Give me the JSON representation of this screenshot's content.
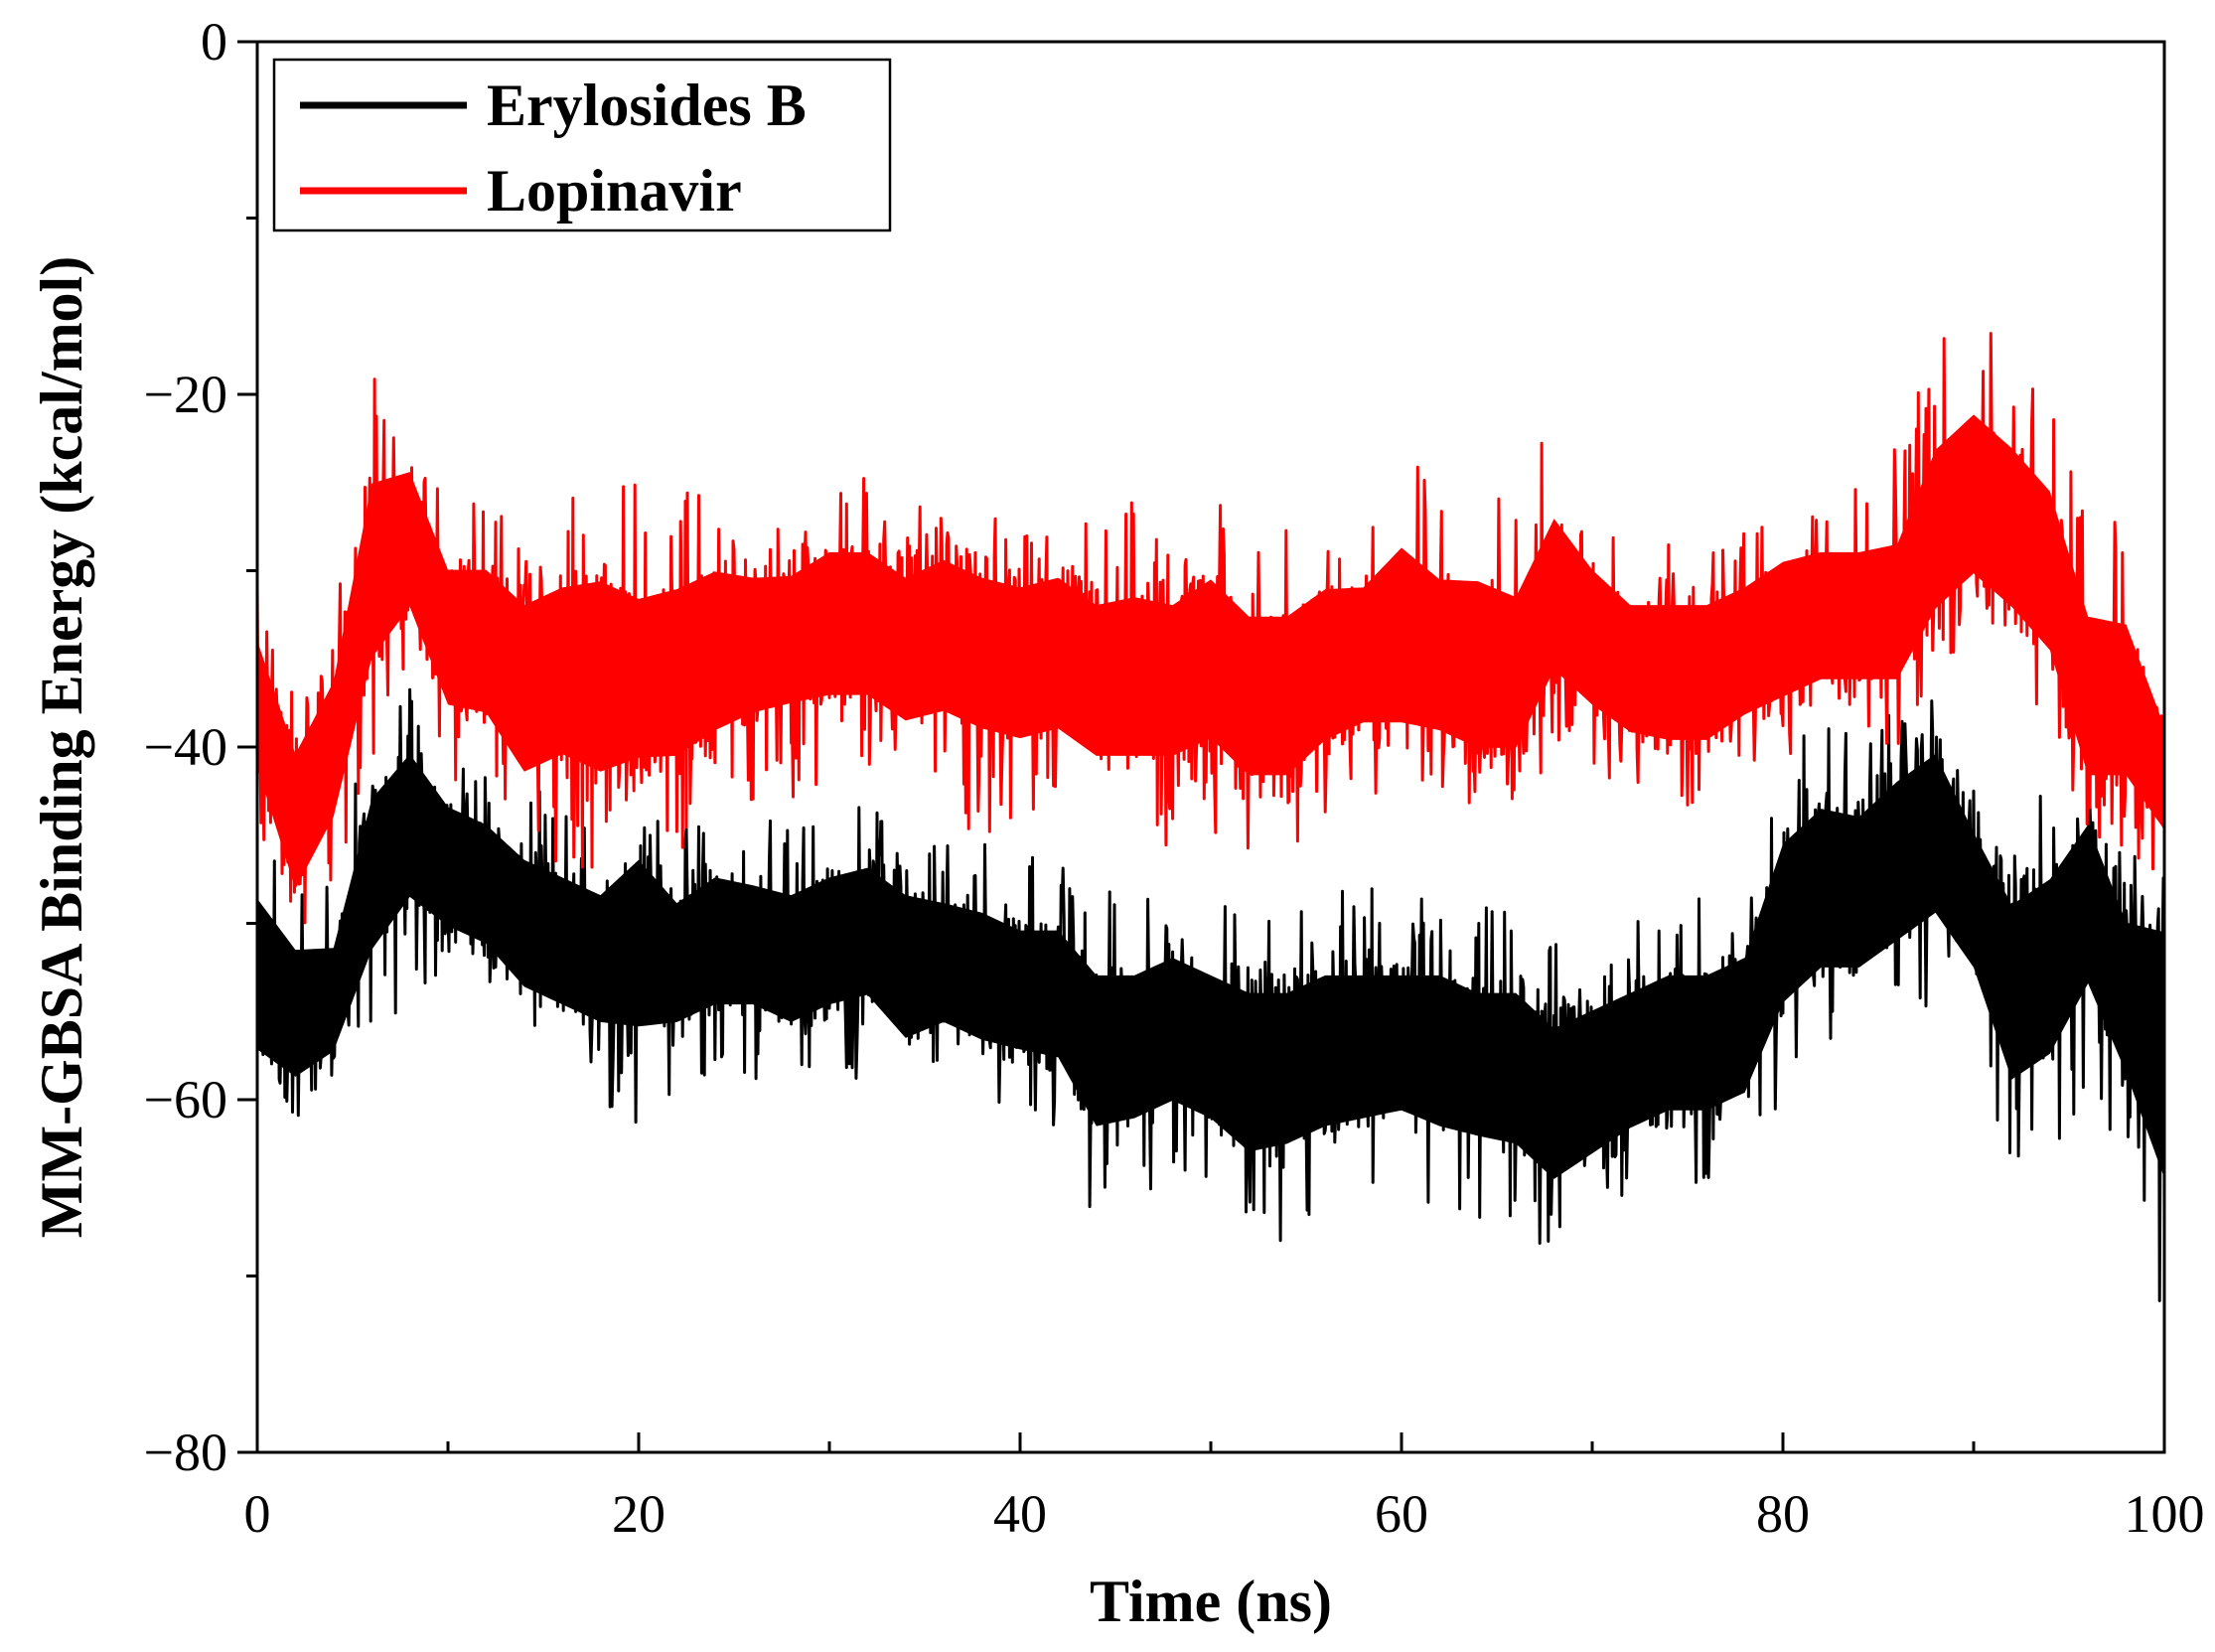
{
  "chart_data": {
    "type": "line",
    "xlabel": "Time (ns)",
    "ylabel": "MM-GBSA Binding Energy (kcal/mol)",
    "xlim": [
      0,
      100
    ],
    "ylim": [
      -80,
      0
    ],
    "x_ticks": [
      0,
      20,
      40,
      60,
      80,
      100
    ],
    "x_minor_ticks": [
      10,
      30,
      50,
      70,
      90
    ],
    "y_ticks": [
      0,
      -20,
      -40,
      -60,
      -80
    ],
    "y_minor_ticks": [
      -10,
      -30,
      -50,
      -70
    ],
    "grid": false,
    "legend_position": "top-left",
    "series": [
      {
        "name": "Erylosides B",
        "color": "#000000",
        "x": [
          0,
          2,
          4,
          6,
          8,
          10,
          12,
          14,
          16,
          18,
          20,
          22,
          24,
          26,
          28,
          30,
          32,
          34,
          36,
          38,
          40,
          42,
          44,
          46,
          48,
          50,
          52,
          54,
          56,
          58,
          60,
          62,
          64,
          66,
          68,
          70,
          72,
          74,
          76,
          78,
          80,
          82,
          84,
          86,
          88,
          90,
          92,
          94,
          96,
          98,
          100
        ],
        "value": [
          -54,
          -56,
          -55,
          -47,
          -44,
          -47,
          -48,
          -50,
          -51,
          -52,
          -50,
          -52,
          -51,
          -51,
          -52,
          -51,
          -50,
          -52,
          -52,
          -53,
          -54,
          -54,
          -57,
          -57,
          -56,
          -57,
          -58,
          -58,
          -57,
          -57,
          -57,
          -57,
          -58,
          -58,
          -60,
          -59,
          -58,
          -57,
          -57,
          -56,
          -50,
          -48,
          -48,
          -46,
          -44,
          -48,
          -53,
          -52,
          -48,
          -54,
          -55
        ],
        "min": [
          -61,
          -62,
          -60,
          -57,
          -54,
          -54,
          -55,
          -58,
          -59,
          -60,
          -63,
          -60,
          -59,
          -59,
          -60,
          -59,
          -59,
          -62,
          -60,
          -61,
          -61,
          -62,
          -67,
          -66,
          -65,
          -66,
          -69,
          -68,
          -67,
          -66,
          -65,
          -67,
          -67,
          -68,
          -70,
          -68,
          -66,
          -65,
          -65,
          -64,
          -60,
          -58,
          -58,
          -57,
          -56,
          -58,
          -66,
          -64,
          -60,
          -64,
          -76
        ],
        "max": [
          -42,
          -46,
          -47,
          -38,
          -36,
          -39,
          -40,
          -42,
          -43,
          -44,
          -42,
          -45,
          -43,
          -44,
          -44,
          -43,
          -43,
          -44,
          -45,
          -45,
          -46,
          -46,
          -48,
          -48,
          -47,
          -48,
          -49,
          -49,
          -48,
          -48,
          -48,
          -48,
          -49,
          -49,
          -51,
          -50,
          -49,
          -48,
          -48,
          -47,
          -40,
          -38,
          -39,
          -37,
          -36,
          -41,
          -44,
          -42,
          -40,
          -45,
          -45
        ]
      },
      {
        "name": "Lopinavir",
        "color": "#ff0000",
        "x": [
          0,
          2,
          4,
          6,
          8,
          10,
          12,
          14,
          16,
          18,
          20,
          22,
          24,
          26,
          28,
          30,
          32,
          34,
          36,
          38,
          40,
          42,
          44,
          46,
          48,
          50,
          52,
          54,
          56,
          58,
          60,
          62,
          64,
          66,
          68,
          70,
          72,
          74,
          76,
          78,
          80,
          82,
          84,
          86,
          88,
          90,
          92,
          94,
          96,
          98,
          100
        ],
        "value": [
          -38,
          -44,
          -39,
          -30,
          -28,
          -34,
          -34,
          -36,
          -35,
          -36,
          -37,
          -36,
          -35,
          -34,
          -33,
          -33,
          -33,
          -34,
          -33,
          -34,
          -35,
          -34,
          -36,
          -36,
          -36,
          -35,
          -38,
          -38,
          -36,
          -35,
          -35,
          -35,
          -36,
          -36,
          -32,
          -34,
          -36,
          -36,
          -36,
          -35,
          -34,
          -33,
          -33,
          -33,
          -29,
          -27,
          -28,
          -30,
          -38,
          -38,
          -42
        ],
        "min": [
          -45,
          -53,
          -50,
          -41,
          -37,
          -42,
          -43,
          -48,
          -47,
          -48,
          -45,
          -46,
          -44,
          -43,
          -43,
          -42,
          -42,
          -44,
          -44,
          -45,
          -45,
          -45,
          -46,
          -46,
          -46,
          -45,
          -46,
          -46,
          -44,
          -43,
          -43,
          -44,
          -45,
          -45,
          -40,
          -42,
          -43,
          -44,
          -44,
          -42,
          -41,
          -40,
          -40,
          -40,
          -36,
          -34,
          -37,
          -40,
          -46,
          -46,
          -48
        ],
        "max": [
          -29,
          -36,
          -33,
          -19,
          -20,
          -25,
          -25,
          -27,
          -26,
          -24,
          -25,
          -25,
          -24,
          -26,
          -27,
          -24,
          -24,
          -26,
          -25,
          -26,
          -26,
          -26,
          -27,
          -26,
          -27,
          -25,
          -26,
          -26,
          -25,
          -26,
          -21,
          -25,
          -24,
          -26,
          -21,
          -25,
          -27,
          -27,
          -27,
          -26,
          -24,
          -24,
          -24,
          -23,
          -16,
          -14,
          -17,
          -20,
          -26,
          -27,
          -35
        ]
      }
    ]
  }
}
